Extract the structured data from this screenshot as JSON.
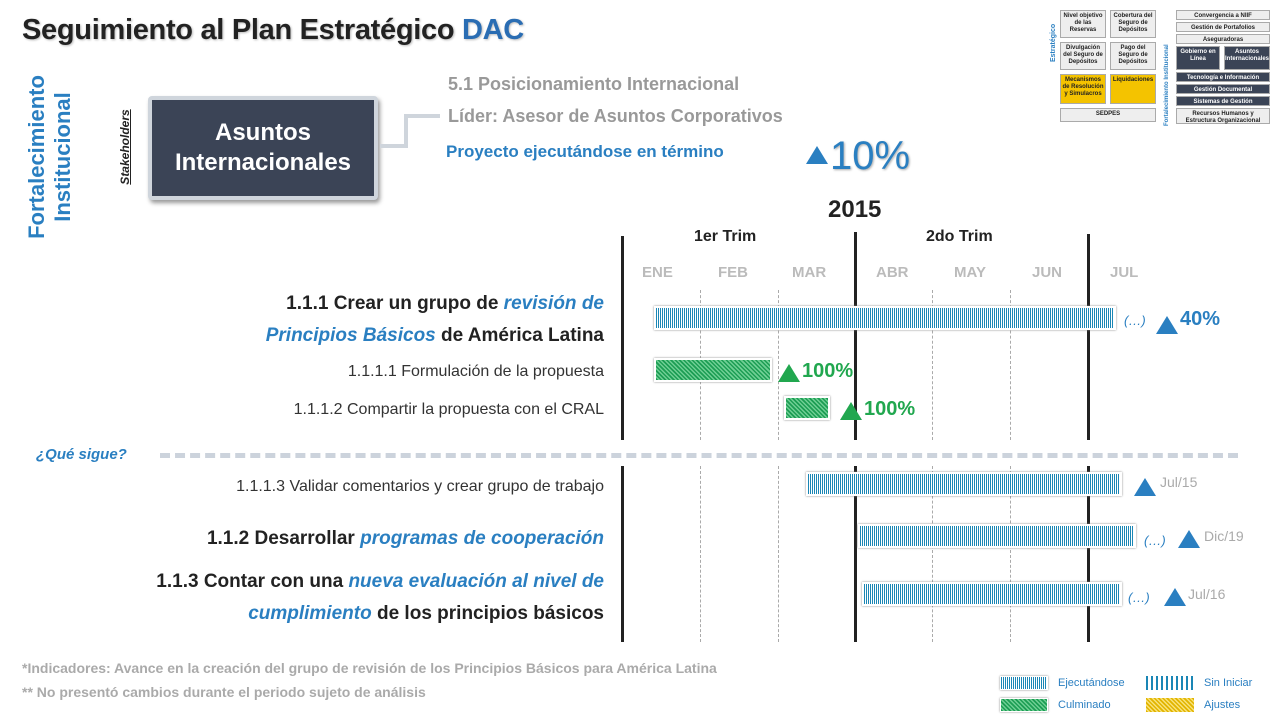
{
  "header": {
    "title_main": "Seguimiento al Plan Estratégico ",
    "title_accent": "DAC"
  },
  "side": {
    "area": "Fortalecimiento Institucional",
    "stakeholders": "Stakeholders"
  },
  "project": {
    "box_label": "Asuntos Internacionales",
    "position": "5.1 Posicionamiento Internacional",
    "leader": "Líder: Asesor de Asuntos Corporativos",
    "status": "Proyecto ejecutándose en término",
    "overall_pct": "10%"
  },
  "timeline": {
    "year": "2015",
    "quarters": [
      "1er Trim",
      "2do Trim"
    ],
    "months": [
      "ENE",
      "FEB",
      "MAR",
      "ABR",
      "MAY",
      "JUN",
      "JUL"
    ]
  },
  "tasks": [
    {
      "id": "1.1.1",
      "text_a": "1.1.1  Crear un grupo de ",
      "text_b": "revisión de",
      "text_c": "Principios Básicos",
      "text_d": " de América Latina",
      "pct": "40%",
      "status": "Ejecutándose",
      "dots": "(…)"
    },
    {
      "id": "1.1.1.1",
      "text": "1.1.1.1 Formulación de la propuesta",
      "pct": "100%",
      "status": "Culminado"
    },
    {
      "id": "1.1.1.2",
      "text": "1.1.1.2 Compartir la propuesta con el CRAL",
      "pct": "100%",
      "status": "Culminado"
    }
  ],
  "next": {
    "label": "¿Qué sigue?",
    "items": [
      {
        "id": "1.1.1.3",
        "text": "1.1.1.3 Validar comentarios y crear grupo de trabajo",
        "due": "Jul/15"
      },
      {
        "id": "1.1.2",
        "text_a": "1.1.2 Desarrollar ",
        "text_b": "programas de cooperación",
        "due": "Dic/19",
        "dots": "(…)"
      },
      {
        "id": "1.1.3",
        "text_a": "1.1.3 Contar con una ",
        "text_b": "nueva evaluación al nivel de",
        "text_c": "cumplimiento",
        "text_d": " de los principios básicos",
        "due": "Jul/16",
        "dots": "(…)"
      }
    ]
  },
  "footer": {
    "note1": "*Indicadores: Avance en la creación del grupo de revisión de los Principios Básicos para América Latina",
    "note2": "** No  presentó cambios durante el periodo sujeto de análisis"
  },
  "legend": {
    "executing": "Ejecutándose",
    "not_started": "Sin Iniciar",
    "done": "Culminado",
    "adjust": "Ajustes"
  },
  "minimap": {
    "strategic": "Estratégico",
    "institutional": "Fortalecimiento Institucional",
    "cells": [
      "Nivel objetivo de las Reservas",
      "Cobertura del Seguro de Depósitos",
      "Divulgación del Seguro de Depósitos",
      "Pago del Seguro de Depósitos",
      "Mecanismos de Resolución y Simulacros",
      "Liquidaciones",
      "SEDPES",
      "Convergencia a NIIF",
      "Gestión de Portafolios",
      "Aseguradoras",
      "Gobierno en Línea",
      "Asuntos Internacionales",
      "Tecnología e Información",
      "Gestión Documental",
      "Sistemas de Gestión",
      "Recursos Humanos y Estructura Organizacional"
    ]
  }
}
